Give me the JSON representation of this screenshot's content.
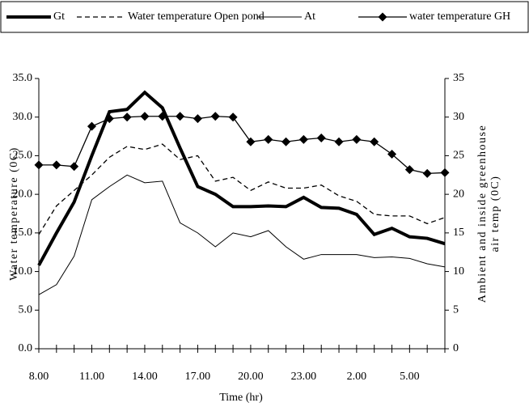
{
  "chart_data": {
    "type": "line",
    "xlabel": "Time (hr)",
    "ylabel": "Water temperature (0C)",
    "y2label": [
      "Ambient and inside greenhouse",
      "air temp (0C)"
    ],
    "categories": [
      "8.00",
      null,
      null,
      "11.00",
      null,
      null,
      "14.00",
      null,
      null,
      "17.00",
      null,
      null,
      "20.00",
      null,
      null,
      "23.00",
      null,
      null,
      "2.00",
      null,
      null,
      "5.00",
      null,
      null
    ],
    "series": [
      {
        "name": "Gt",
        "color": "#000000",
        "width": 4,
        "dash": false,
        "values": [
          10.8,
          15.0,
          19.0,
          25.0,
          30.7,
          31.0,
          33.2,
          31.2,
          26.0,
          21.0,
          20.0,
          18.4,
          18.4,
          18.5,
          18.4,
          19.6,
          18.3,
          18.2,
          17.4,
          14.8,
          15.6,
          14.5,
          14.3,
          13.6
        ]
      },
      {
        "name": "Water temperature Open pond",
        "color": "#000000",
        "width": 1.3,
        "dash": true,
        "values": [
          14.8,
          18.5,
          20.5,
          22.5,
          24.8,
          26.2,
          25.8,
          26.5,
          24.5,
          25.0,
          21.7,
          22.2,
          20.5,
          21.6,
          20.8,
          20.8,
          21.2,
          19.8,
          19.1,
          17.4,
          17.2,
          17.2,
          16.2,
          17.0
        ]
      },
      {
        "name": "At",
        "color": "#000000",
        "width": 1,
        "dash": false,
        "axis": "y2",
        "values": [
          7.0,
          8.3,
          12.0,
          19.3,
          21.0,
          22.5,
          21.5,
          21.7,
          16.3,
          15.0,
          13.2,
          15.0,
          14.5,
          15.3,
          13.2,
          11.6,
          12.2,
          12.2,
          12.2,
          11.8,
          11.9,
          11.7,
          11.0,
          10.6
        ]
      },
      {
        "name": "water temperature GH",
        "color": "#000000",
        "width": 1.3,
        "dash": false,
        "marker": "diamond",
        "values": [
          23.8,
          23.8,
          23.6,
          28.8,
          29.8,
          30.0,
          30.1,
          30.1,
          30.1,
          29.8,
          30.1,
          30.0,
          26.8,
          27.1,
          26.8,
          27.1,
          27.3,
          26.8,
          27.1,
          26.8,
          25.2,
          23.2,
          22.7,
          22.8
        ]
      }
    ],
    "ylim": [
      0,
      35
    ],
    "yticks": [
      {
        "value": 0,
        "label": "0.0"
      },
      {
        "value": 5,
        "label": "5.0"
      },
      {
        "value": 10,
        "label": "10.0"
      },
      {
        "value": 15,
        "label": "15.0"
      },
      {
        "value": 20,
        "label": "20.0"
      },
      {
        "value": 25,
        "label": "25.0"
      },
      {
        "value": 30,
        "label": "30.0"
      },
      {
        "value": 35,
        "label": "35.0"
      }
    ],
    "y2lim": [
      0,
      35
    ],
    "y2ticks": [
      0,
      5,
      10,
      15,
      20,
      25,
      30,
      35
    ],
    "grid": false,
    "legend": "top"
  }
}
